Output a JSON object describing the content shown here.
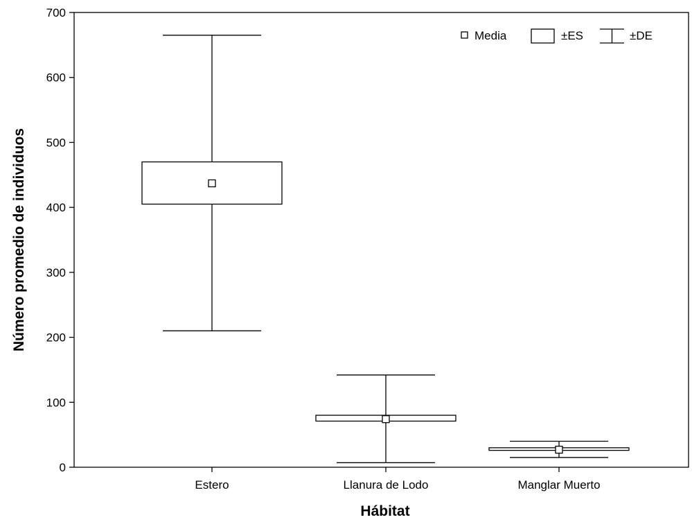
{
  "chart_data": {
    "type": "box",
    "title": "",
    "xlabel": "Hábitat",
    "ylabel": "Número promedio de individuos",
    "ylim": [
      0,
      700
    ],
    "yticks": [
      0,
      100,
      200,
      300,
      400,
      500,
      600,
      700
    ],
    "categories": [
      "Estero",
      "Llanura de Lodo",
      "Manglar Muerto"
    ],
    "series": [
      {
        "category": "Estero",
        "mean": 437,
        "se_low": 405,
        "se_high": 470,
        "sd_low": 210,
        "sd_high": 665
      },
      {
        "category": "Llanura de Lodo",
        "mean": 74,
        "se_low": 71,
        "se_high": 80,
        "sd_low": 7,
        "sd_high": 142
      },
      {
        "category": "Manglar Muerto",
        "mean": 27,
        "se_low": 26,
        "se_high": 30,
        "sd_low": 15,
        "sd_high": 40
      }
    ],
    "legend": {
      "position": "top-right",
      "items": [
        {
          "symbol": "mean-square",
          "label": "Media"
        },
        {
          "symbol": "box",
          "label": "±ES"
        },
        {
          "symbol": "whisker",
          "label": "±DE"
        }
      ]
    },
    "grid": false,
    "colors": {
      "stroke": "#000000",
      "fill": "#ffffff"
    }
  }
}
